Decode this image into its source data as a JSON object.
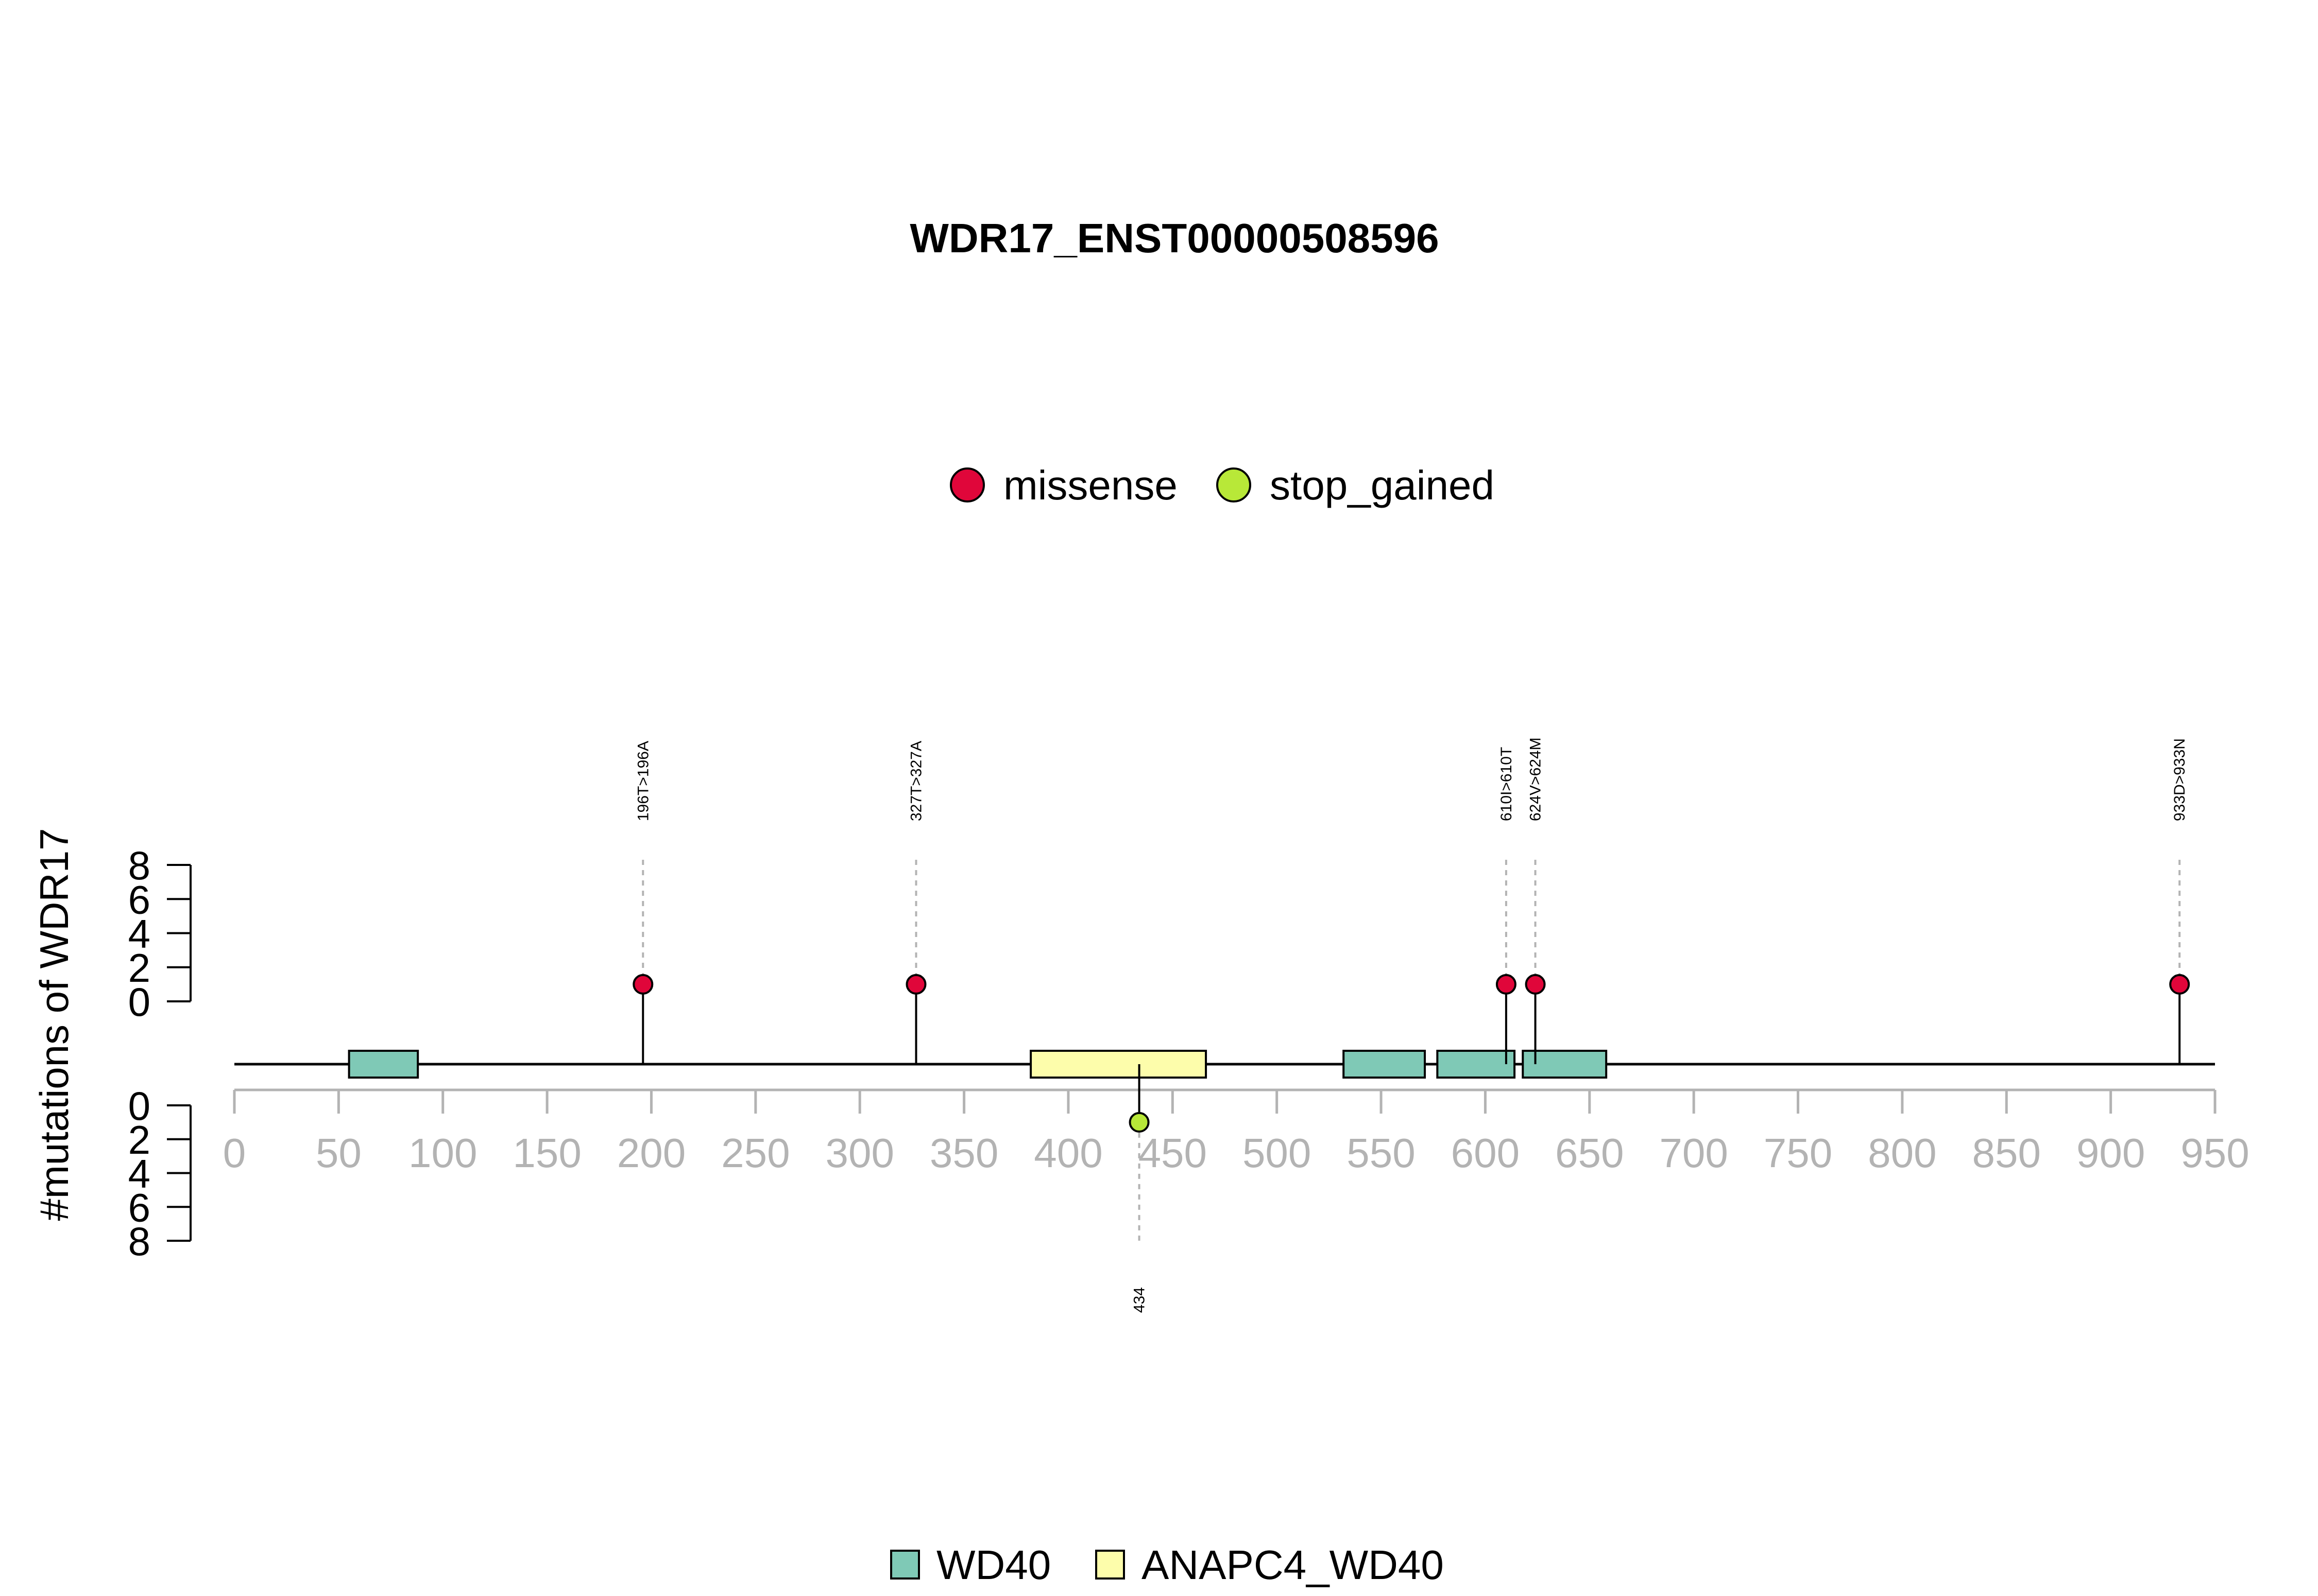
{
  "chart_data": {
    "type": "lollipop",
    "title": "WDR17_ENST00000508596",
    "ylabel": "#mutations of WDR17",
    "x_ticks": [
      0,
      50,
      100,
      150,
      200,
      250,
      300,
      350,
      400,
      450,
      500,
      550,
      600,
      650,
      700,
      750,
      800,
      850,
      900,
      950
    ],
    "xlim": [
      0,
      950
    ],
    "y_ticks_top": [
      0,
      2,
      4,
      6,
      8
    ],
    "y_ticks_bottom": [
      0,
      2,
      4,
      6,
      8
    ],
    "ylim": [
      0,
      8
    ],
    "protein_length": 950,
    "colors": {
      "missense": "#e0063a",
      "stop_gained": "#b8e838",
      "WD40": "#7fc9b6",
      "ANAPC4_WD40": "#fdfdab",
      "tick_label": "#b3b3b3",
      "guide": "#b3b3b3"
    },
    "mutation_legend": [
      {
        "key": "missense",
        "label": "missense"
      },
      {
        "key": "stop_gained",
        "label": "stop_gained"
      }
    ],
    "domain_legend": [
      {
        "key": "WD40",
        "label": "WD40"
      },
      {
        "key": "ANAPC4_WD40",
        "label": "ANAPC4_WD40"
      }
    ],
    "domains": [
      {
        "name": "WD40",
        "start": 55,
        "end": 88
      },
      {
        "name": "ANAPC4_WD40",
        "start": 382,
        "end": 466
      },
      {
        "name": "WD40",
        "start": 532,
        "end": 571
      },
      {
        "name": "WD40",
        "start": 577,
        "end": 614
      },
      {
        "name": "WD40",
        "start": 618,
        "end": 658
      }
    ],
    "mutations": [
      {
        "position": 196,
        "count": 1,
        "type": "missense",
        "label": "196T>196A",
        "side": "top"
      },
      {
        "position": 327,
        "count": 1,
        "type": "missense",
        "label": "327T>327A",
        "side": "top"
      },
      {
        "position": 610,
        "count": 1,
        "type": "missense",
        "label": "610I>610T",
        "side": "top"
      },
      {
        "position": 624,
        "count": 1,
        "type": "missense",
        "label": "624V>624M",
        "side": "top"
      },
      {
        "position": 933,
        "count": 1,
        "type": "missense",
        "label": "933D>933N",
        "side": "top"
      },
      {
        "position": 434,
        "count": 1,
        "type": "stop_gained",
        "label": "434",
        "side": "bottom"
      }
    ]
  }
}
